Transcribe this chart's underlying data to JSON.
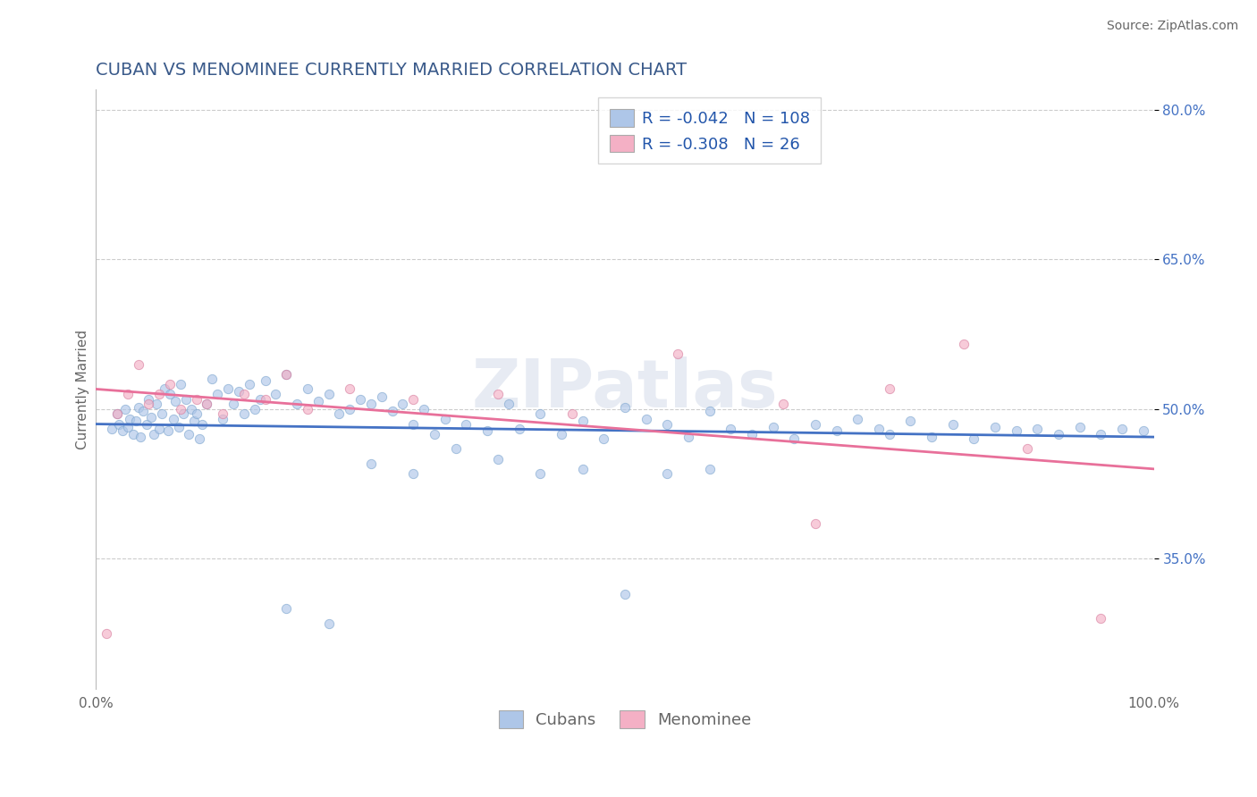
{
  "title": "CUBAN VS MENOMINEE CURRENTLY MARRIED CORRELATION CHART",
  "source_text": "Source: ZipAtlas.com",
  "ylabel": "Currently Married",
  "xlim": [
    0,
    100
  ],
  "ylim": [
    22,
    82
  ],
  "yticks": [
    35.0,
    50.0,
    65.0,
    80.0
  ],
  "ytick_labels": [
    "35.0%",
    "50.0%",
    "65.0%",
    "80.0%"
  ],
  "xtick_labels": [
    "0.0%",
    "100.0%"
  ],
  "title_color": "#3a5a8a",
  "title_fontsize": 14,
  "axis_color": "#666666",
  "watermark": "ZIPatlas",
  "cubans_color": "#aec6e8",
  "cubans_edge_color": "#80a8d0",
  "menominee_color": "#f4b0c5",
  "menominee_edge_color": "#d880a0",
  "cubans_line_color": "#4472c4",
  "menominee_line_color": "#e8709a",
  "legend_R_cubans": "-0.042",
  "legend_N_cubans": "108",
  "legend_R_menominee": "-0.308",
  "legend_N_menominee": "26",
  "grid_color": "#cccccc",
  "background_color": "#ffffff",
  "legend_text_color": "#2255aa",
  "legend_fontsize": 13,
  "marker_size": 55,
  "marker_alpha": 0.65,
  "cubans_trend": [
    48.5,
    47.2
  ],
  "menominee_trend": [
    52.0,
    44.0
  ],
  "cubans_x": [
    1.5,
    2.0,
    2.2,
    2.5,
    2.8,
    3.0,
    3.2,
    3.5,
    3.8,
    4.0,
    4.2,
    4.5,
    4.8,
    5.0,
    5.2,
    5.5,
    5.7,
    6.0,
    6.2,
    6.5,
    6.8,
    7.0,
    7.3,
    7.5,
    7.8,
    8.0,
    8.3,
    8.5,
    8.8,
    9.0,
    9.3,
    9.5,
    9.8,
    10.0,
    10.5,
    11.0,
    11.5,
    12.0,
    12.5,
    13.0,
    13.5,
    14.0,
    14.5,
    15.0,
    15.5,
    16.0,
    17.0,
    18.0,
    19.0,
    20.0,
    21.0,
    22.0,
    23.0,
    24.0,
    25.0,
    26.0,
    27.0,
    28.0,
    29.0,
    30.0,
    31.0,
    32.0,
    33.0,
    35.0,
    37.0,
    39.0,
    40.0,
    42.0,
    44.0,
    46.0,
    48.0,
    50.0,
    52.0,
    54.0,
    56.0,
    58.0,
    60.0,
    62.0,
    64.0,
    66.0,
    68.0,
    70.0,
    72.0,
    74.0,
    75.0,
    77.0,
    79.0,
    81.0,
    83.0,
    85.0,
    87.0,
    89.0,
    91.0,
    93.0,
    95.0,
    97.0,
    99.0,
    18.0,
    22.0,
    26.0,
    30.0,
    34.0,
    38.0,
    42.0,
    46.0,
    50.0,
    54.0,
    58.0
  ],
  "cubans_y": [
    48.0,
    49.5,
    48.5,
    47.8,
    50.0,
    48.2,
    49.0,
    47.5,
    48.8,
    50.2,
    47.2,
    49.8,
    48.5,
    51.0,
    49.2,
    47.5,
    50.5,
    48.0,
    49.5,
    52.0,
    47.8,
    51.5,
    49.0,
    50.8,
    48.2,
    52.5,
    49.5,
    51.0,
    47.5,
    50.0,
    48.8,
    49.5,
    47.0,
    48.5,
    50.5,
    53.0,
    51.5,
    49.0,
    52.0,
    50.5,
    51.8,
    49.5,
    52.5,
    50.0,
    51.0,
    52.8,
    51.5,
    53.5,
    50.5,
    52.0,
    50.8,
    51.5,
    49.5,
    50.0,
    51.0,
    50.5,
    51.2,
    49.8,
    50.5,
    48.5,
    50.0,
    47.5,
    49.0,
    48.5,
    47.8,
    50.5,
    48.0,
    49.5,
    47.5,
    48.8,
    47.0,
    50.2,
    49.0,
    48.5,
    47.2,
    49.8,
    48.0,
    47.5,
    48.2,
    47.0,
    48.5,
    47.8,
    49.0,
    48.0,
    47.5,
    48.8,
    47.2,
    48.5,
    47.0,
    48.2,
    47.8,
    48.0,
    47.5,
    48.2,
    47.5,
    48.0,
    47.8,
    30.0,
    28.5,
    44.5,
    43.5,
    46.0,
    45.0,
    43.5,
    44.0,
    31.5,
    43.5,
    44.0
  ],
  "menominee_x": [
    1.0,
    2.0,
    3.0,
    4.0,
    5.0,
    6.0,
    7.0,
    8.0,
    9.5,
    10.5,
    12.0,
    14.0,
    16.0,
    18.0,
    20.0,
    24.0,
    30.0,
    38.0,
    45.0,
    55.0,
    65.0,
    68.0,
    75.0,
    82.0,
    88.0,
    95.0
  ],
  "menominee_y": [
    27.5,
    49.5,
    51.5,
    54.5,
    50.5,
    51.5,
    52.5,
    50.0,
    51.0,
    50.5,
    49.5,
    51.5,
    51.0,
    53.5,
    50.0,
    52.0,
    51.0,
    51.5,
    49.5,
    55.5,
    50.5,
    38.5,
    52.0,
    56.5,
    46.0,
    29.0
  ]
}
